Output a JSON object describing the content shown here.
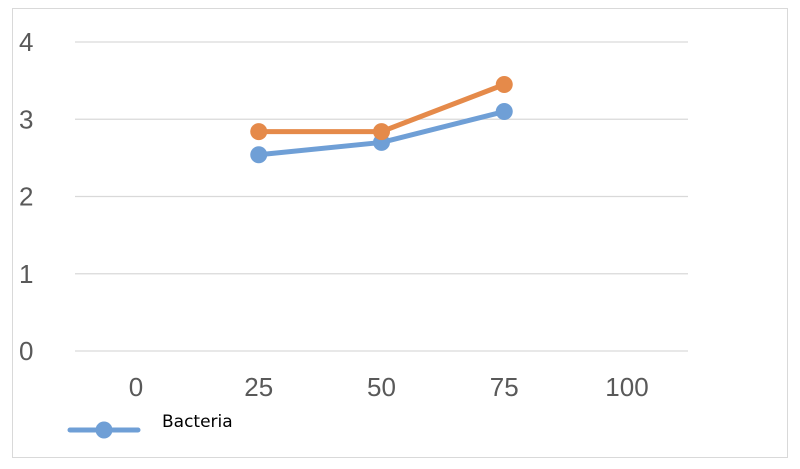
{
  "chart_data": {
    "type": "line",
    "x": [
      25,
      50,
      75
    ],
    "x_ticks": [
      "0",
      "25",
      "50",
      "75",
      "100"
    ],
    "y_ticks": [
      "0",
      "1",
      "2",
      "3",
      "4"
    ],
    "xlim": [
      0,
      100
    ],
    "ylim": [
      0,
      4
    ],
    "grid": true,
    "legend_position": "bottom-left",
    "title": "",
    "xlabel": "",
    "ylabel": "",
    "series": [
      {
        "name": "Bacteria",
        "values": [
          2.54,
          2.7,
          3.1
        ],
        "color": "#6f9fd6"
      },
      {
        "values": [
          2.84,
          2.84,
          3.45
        ],
        "color": "#e58a4a"
      }
    ],
    "gridline_color": "#d9d9d9"
  }
}
